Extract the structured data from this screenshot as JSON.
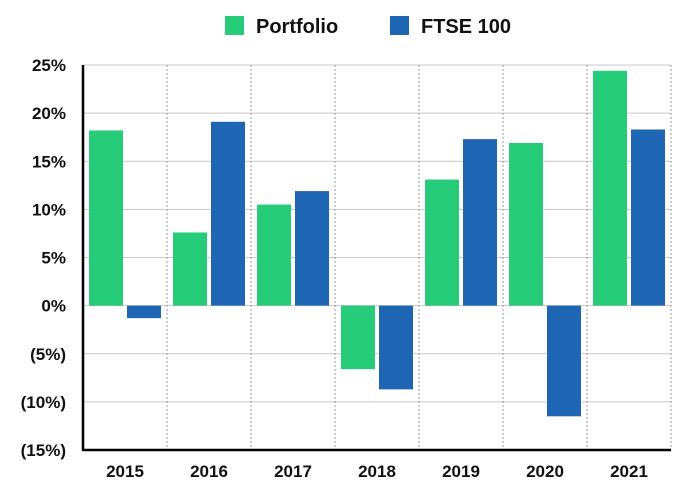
{
  "chart_data": {
    "type": "bar",
    "categories": [
      "2015",
      "2016",
      "2017",
      "2018",
      "2019",
      "2020",
      "2021"
    ],
    "series": [
      {
        "name": "Portfolio",
        "color": "#26cc7a",
        "values": [
          18.2,
          7.6,
          10.5,
          -6.6,
          13.1,
          16.9,
          24.4
        ]
      },
      {
        "name": "FTSE 100",
        "color": "#1e66b4",
        "values": [
          -1.3,
          19.1,
          11.9,
          -8.7,
          17.3,
          -11.5,
          18.3
        ]
      }
    ],
    "ylim": [
      -15,
      25
    ],
    "yticks": [
      {
        "value": 25,
        "label": "25%"
      },
      {
        "value": 20,
        "label": "20%"
      },
      {
        "value": 15,
        "label": "15%"
      },
      {
        "value": 10,
        "label": "10%"
      },
      {
        "value": 5,
        "label": "5%"
      },
      {
        "value": 0,
        "label": "0%"
      },
      {
        "value": -5,
        "label": "(5%)"
      },
      {
        "value": -10,
        "label": "(10%)"
      },
      {
        "value": -15,
        "label": "(15%)"
      }
    ],
    "title": "",
    "xlabel": "",
    "ylabel": "",
    "grid": true,
    "legend_position": "top"
  }
}
